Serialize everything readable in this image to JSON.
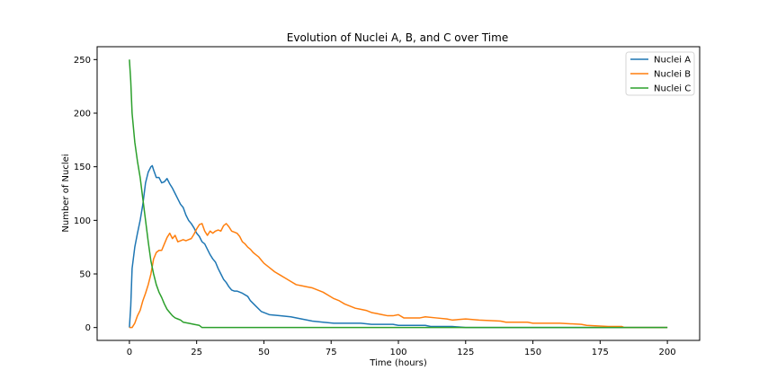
{
  "chart_data": {
    "type": "line",
    "title": "Evolution of Nuclei A, B, and C over Time",
    "xlabel": "Time (hours)",
    "ylabel": "Number of Nuclei",
    "xlim": [
      -12,
      212
    ],
    "ylim": [
      -12,
      262
    ],
    "xticks": [
      0,
      25,
      50,
      75,
      100,
      125,
      150,
      175,
      200
    ],
    "yticks": [
      0,
      50,
      100,
      150,
      200,
      250
    ],
    "grid": false,
    "legend_position": "top-right",
    "series": [
      {
        "name": "Nuclei A",
        "color": "#1f77b4",
        "points": [
          [
            0,
            0
          ],
          [
            0.5,
            20
          ],
          [
            1,
            55
          ],
          [
            2,
            75
          ],
          [
            3,
            88
          ],
          [
            4,
            100
          ],
          [
            5,
            115
          ],
          [
            6,
            135
          ],
          [
            7,
            145
          ],
          [
            8,
            150
          ],
          [
            8.5,
            151
          ],
          [
            9,
            147
          ],
          [
            10,
            140
          ],
          [
            11,
            140
          ],
          [
            12,
            135
          ],
          [
            13,
            136
          ],
          [
            14,
            139
          ],
          [
            15,
            134
          ],
          [
            16,
            130
          ],
          [
            17,
            125
          ],
          [
            18,
            120
          ],
          [
            19,
            115
          ],
          [
            20,
            112
          ],
          [
            21,
            105
          ],
          [
            22,
            100
          ],
          [
            23,
            97
          ],
          [
            24,
            93
          ],
          [
            25,
            88
          ],
          [
            26,
            85
          ],
          [
            27,
            80
          ],
          [
            28,
            78
          ],
          [
            29,
            73
          ],
          [
            30,
            68
          ],
          [
            31,
            64
          ],
          [
            32,
            61
          ],
          [
            33,
            55
          ],
          [
            34,
            50
          ],
          [
            35,
            45
          ],
          [
            36,
            42
          ],
          [
            37,
            38
          ],
          [
            38,
            35
          ],
          [
            39,
            34
          ],
          [
            40,
            34
          ],
          [
            42,
            32
          ],
          [
            44,
            29
          ],
          [
            45,
            25
          ],
          [
            47,
            20
          ],
          [
            49,
            15
          ],
          [
            52,
            12
          ],
          [
            56,
            11
          ],
          [
            60,
            10
          ],
          [
            64,
            8
          ],
          [
            68,
            6
          ],
          [
            72,
            5
          ],
          [
            76,
            4
          ],
          [
            86,
            4
          ],
          [
            90,
            3
          ],
          [
            98,
            3
          ],
          [
            100,
            2
          ],
          [
            110,
            2
          ],
          [
            112,
            1
          ],
          [
            120,
            1
          ],
          [
            125,
            0
          ],
          [
            200,
            0
          ]
        ]
      },
      {
        "name": "Nuclei B",
        "color": "#ff7f0e",
        "points": [
          [
            0,
            0
          ],
          [
            1,
            0
          ],
          [
            2,
            4
          ],
          [
            3,
            11
          ],
          [
            4,
            16
          ],
          [
            5,
            25
          ],
          [
            6,
            32
          ],
          [
            7,
            40
          ],
          [
            8,
            50
          ],
          [
            9,
            64
          ],
          [
            10,
            70
          ],
          [
            11,
            72
          ],
          [
            12,
            72
          ],
          [
            13,
            78
          ],
          [
            14,
            84
          ],
          [
            15,
            88
          ],
          [
            16,
            83
          ],
          [
            17,
            86
          ],
          [
            18,
            80
          ],
          [
            19,
            81
          ],
          [
            20,
            82
          ],
          [
            21,
            81
          ],
          [
            22,
            82
          ],
          [
            23,
            83
          ],
          [
            24,
            87
          ],
          [
            25,
            92
          ],
          [
            26,
            96
          ],
          [
            27,
            97
          ],
          [
            28,
            90
          ],
          [
            29,
            86
          ],
          [
            30,
            90
          ],
          [
            31,
            88
          ],
          [
            32,
            90
          ],
          [
            33,
            91
          ],
          [
            34,
            90
          ],
          [
            35,
            95
          ],
          [
            36,
            97
          ],
          [
            37,
            94
          ],
          [
            38,
            90
          ],
          [
            39,
            89
          ],
          [
            40,
            88
          ],
          [
            41,
            85
          ],
          [
            42,
            80
          ],
          [
            43,
            78
          ],
          [
            44,
            75
          ],
          [
            45,
            73
          ],
          [
            46,
            70
          ],
          [
            47,
            68
          ],
          [
            48,
            66
          ],
          [
            49,
            63
          ],
          [
            50,
            60
          ],
          [
            52,
            56
          ],
          [
            54,
            52
          ],
          [
            56,
            49
          ],
          [
            58,
            46
          ],
          [
            60,
            43
          ],
          [
            62,
            40
          ],
          [
            64,
            39
          ],
          [
            66,
            38
          ],
          [
            68,
            37
          ],
          [
            70,
            35
          ],
          [
            72,
            33
          ],
          [
            74,
            30
          ],
          [
            76,
            27
          ],
          [
            78,
            25
          ],
          [
            80,
            22
          ],
          [
            82,
            20
          ],
          [
            84,
            18
          ],
          [
            86,
            17
          ],
          [
            88,
            16
          ],
          [
            90,
            14
          ],
          [
            92,
            13
          ],
          [
            94,
            12
          ],
          [
            96,
            11
          ],
          [
            98,
            11
          ],
          [
            100,
            12
          ],
          [
            102,
            9
          ],
          [
            104,
            9
          ],
          [
            108,
            9
          ],
          [
            110,
            10
          ],
          [
            114,
            9
          ],
          [
            118,
            8
          ],
          [
            120,
            7
          ],
          [
            125,
            8
          ],
          [
            130,
            7
          ],
          [
            138,
            6
          ],
          [
            140,
            5
          ],
          [
            148,
            5
          ],
          [
            150,
            4
          ],
          [
            160,
            4
          ],
          [
            168,
            3
          ],
          [
            170,
            2
          ],
          [
            178,
            1
          ],
          [
            183,
            1
          ],
          [
            184,
            0
          ],
          [
            200,
            0
          ]
        ]
      },
      {
        "name": "Nuclei C",
        "color": "#2ca02c",
        "points": [
          [
            0,
            250
          ],
          [
            0.5,
            230
          ],
          [
            1,
            200
          ],
          [
            2,
            173
          ],
          [
            3,
            155
          ],
          [
            4,
            140
          ],
          [
            5,
            120
          ],
          [
            6,
            100
          ],
          [
            7,
            80
          ],
          [
            8,
            62
          ],
          [
            9,
            50
          ],
          [
            10,
            40
          ],
          [
            11,
            33
          ],
          [
            12,
            28
          ],
          [
            13,
            22
          ],
          [
            14,
            17
          ],
          [
            15,
            14
          ],
          [
            16,
            11
          ],
          [
            17,
            9
          ],
          [
            18,
            8
          ],
          [
            19,
            7
          ],
          [
            20,
            5
          ],
          [
            22,
            4
          ],
          [
            24,
            3
          ],
          [
            26,
            2
          ],
          [
            27,
            0
          ],
          [
            200,
            0
          ]
        ]
      }
    ]
  }
}
